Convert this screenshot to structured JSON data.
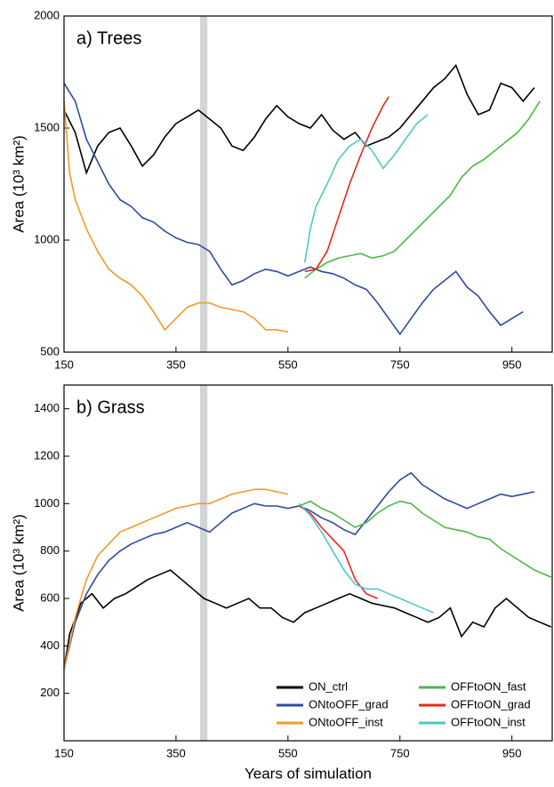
{
  "chart_data": [
    {
      "type": "line",
      "title": "a) Trees",
      "ylabel": "Area (10³ km²)",
      "xlim": [
        150,
        1022
      ],
      "xticks": [
        150,
        350,
        550,
        750,
        950
      ],
      "ylim": [
        500,
        2000
      ],
      "yticks": [
        500,
        1000,
        1500,
        2000
      ],
      "highlight_span": [
        393,
        406
      ],
      "series": [
        {
          "color": "#000000",
          "x": [
            150,
            170,
            190,
            210,
            230,
            250,
            270,
            290,
            310,
            330,
            350,
            370,
            390,
            410,
            430,
            450,
            470,
            490,
            510,
            530,
            550,
            570,
            590,
            610,
            630,
            650,
            670,
            690,
            710,
            730,
            750,
            770,
            790,
            810,
            830,
            850,
            870,
            890,
            910,
            930,
            950,
            970,
            990
          ],
          "values": [
            1580,
            1480,
            1300,
            1420,
            1480,
            1500,
            1420,
            1330,
            1380,
            1460,
            1520,
            1550,
            1580,
            1540,
            1500,
            1420,
            1400,
            1460,
            1540,
            1600,
            1550,
            1520,
            1500,
            1560,
            1490,
            1450,
            1480,
            1420,
            1440,
            1460,
            1500,
            1560,
            1620,
            1680,
            1720,
            1780,
            1650,
            1560,
            1580,
            1700,
            1680,
            1620,
            1680
          ]
        },
        {
          "color": "#2e4a9e",
          "x": [
            150,
            170,
            190,
            210,
            230,
            250,
            270,
            290,
            310,
            330,
            350,
            370,
            390,
            410,
            430,
            450,
            470,
            490,
            510,
            530,
            550,
            570,
            590,
            610,
            630,
            650,
            670,
            690,
            710,
            730,
            750,
            770,
            790,
            810,
            830,
            850,
            870,
            890,
            910,
            930,
            950,
            970
          ],
          "values": [
            1700,
            1620,
            1450,
            1350,
            1250,
            1180,
            1150,
            1100,
            1080,
            1040,
            1010,
            990,
            980,
            950,
            870,
            800,
            820,
            850,
            870,
            860,
            840,
            860,
            880,
            860,
            850,
            830,
            800,
            780,
            720,
            650,
            580,
            650,
            720,
            780,
            820,
            860,
            790,
            750,
            680,
            620,
            650,
            680
          ]
        },
        {
          "color": "#f39a2b",
          "x": [
            150,
            160,
            170,
            190,
            210,
            230,
            250,
            270,
            290,
            310,
            330,
            350,
            370,
            390,
            410,
            430,
            450,
            470,
            490,
            510,
            530,
            550
          ],
          "values": [
            1620,
            1300,
            1180,
            1050,
            950,
            870,
            830,
            800,
            750,
            680,
            600,
            650,
            700,
            720,
            720,
            700,
            690,
            680,
            650,
            600,
            600,
            590
          ]
        },
        {
          "color": "#4cb847",
          "x": [
            580,
            600,
            620,
            640,
            660,
            680,
            700,
            720,
            740,
            760,
            780,
            800,
            820,
            840,
            860,
            880,
            900,
            920,
            940,
            960,
            980,
            1000
          ],
          "values": [
            830,
            870,
            900,
            920,
            930,
            940,
            920,
            930,
            950,
            1000,
            1050,
            1100,
            1150,
            1200,
            1280,
            1330,
            1360,
            1400,
            1440,
            1480,
            1540,
            1620
          ]
        },
        {
          "color": "#e8291c",
          "x": [
            580,
            600,
            620,
            640,
            660,
            680,
            700,
            720,
            730
          ],
          "values": [
            860,
            870,
            950,
            1100,
            1250,
            1380,
            1500,
            1600,
            1640
          ]
        },
        {
          "color": "#4fc8c8",
          "x": [
            580,
            590,
            600,
            620,
            640,
            660,
            680,
            700,
            720,
            740,
            760,
            780,
            800
          ],
          "values": [
            900,
            1050,
            1150,
            1250,
            1360,
            1420,
            1450,
            1400,
            1320,
            1380,
            1450,
            1520,
            1560
          ]
        }
      ]
    },
    {
      "type": "line",
      "title": "b) Grass",
      "ylabel": "Area (10³ km²)",
      "xlabel": "Years of simulation",
      "xlim": [
        150,
        1022
      ],
      "xticks": [
        150,
        350,
        550,
        750,
        950
      ],
      "ylim": [
        0,
        1500
      ],
      "yticks": [
        200,
        400,
        600,
        800,
        1000,
        1200,
        1400
      ],
      "highlight_span": [
        393,
        406
      ],
      "legend": "lower right",
      "series": [
        {
          "name": "ON_ctrl",
          "color": "#000000",
          "x": [
            150,
            160,
            180,
            200,
            220,
            240,
            260,
            280,
            300,
            320,
            340,
            360,
            380,
            400,
            420,
            440,
            460,
            480,
            500,
            520,
            540,
            560,
            580,
            600,
            620,
            640,
            660,
            680,
            700,
            720,
            740,
            760,
            780,
            800,
            820,
            840,
            860,
            880,
            900,
            920,
            940,
            960,
            980,
            1000,
            1020
          ],
          "values": [
            300,
            450,
            580,
            620,
            560,
            600,
            620,
            650,
            680,
            700,
            720,
            680,
            640,
            600,
            580,
            560,
            580,
            600,
            560,
            560,
            520,
            500,
            540,
            560,
            580,
            600,
            620,
            600,
            580,
            570,
            560,
            540,
            520,
            500,
            520,
            560,
            440,
            500,
            480,
            560,
            600,
            560,
            520,
            500,
            480
          ]
        },
        {
          "name": "ONtoOFF_grad",
          "color": "#2e4a9e",
          "x": [
            150,
            170,
            190,
            210,
            230,
            250,
            270,
            290,
            310,
            330,
            350,
            370,
            390,
            410,
            430,
            450,
            470,
            490,
            510,
            530,
            550,
            570,
            590,
            610,
            630,
            650,
            670,
            690,
            710,
            730,
            750,
            770,
            790,
            810,
            830,
            850,
            870,
            890,
            910,
            930,
            950,
            970,
            990
          ],
          "values": [
            300,
            500,
            620,
            700,
            760,
            800,
            830,
            850,
            870,
            880,
            900,
            920,
            900,
            880,
            920,
            960,
            980,
            1000,
            990,
            990,
            980,
            990,
            970,
            940,
            920,
            890,
            870,
            930,
            990,
            1050,
            1100,
            1130,
            1080,
            1050,
            1020,
            1000,
            980,
            1000,
            1020,
            1040,
            1030,
            1040,
            1050
          ]
        },
        {
          "name": "ONtoOFF_inst",
          "color": "#f39a2b",
          "x": [
            150,
            170,
            190,
            210,
            230,
            250,
            270,
            290,
            310,
            330,
            350,
            370,
            390,
            410,
            430,
            450,
            470,
            490,
            510,
            530,
            550
          ],
          "values": [
            300,
            520,
            680,
            780,
            830,
            880,
            900,
            920,
            940,
            960,
            980,
            990,
            1000,
            1000,
            1020,
            1040,
            1050,
            1060,
            1060,
            1050,
            1040
          ]
        },
        {
          "name": "OFFtoON_fast",
          "color": "#4cb847",
          "x": [
            570,
            590,
            610,
            630,
            650,
            670,
            690,
            710,
            730,
            750,
            770,
            790,
            810,
            830,
            850,
            870,
            890,
            910,
            930,
            950,
            970,
            990,
            1020
          ],
          "values": [
            990,
            1010,
            980,
            960,
            930,
            900,
            920,
            960,
            990,
            1010,
            1000,
            960,
            930,
            900,
            890,
            880,
            860,
            850,
            810,
            780,
            750,
            720,
            690
          ]
        },
        {
          "name": "OFFtoON_grad",
          "color": "#e8291c",
          "x": [
            570,
            590,
            610,
            630,
            650,
            670,
            690,
            710
          ],
          "values": [
            990,
            960,
            900,
            850,
            800,
            680,
            620,
            600
          ]
        },
        {
          "name": "OFFtoON_inst",
          "color": "#4fc8c8",
          "x": [
            570,
            590,
            610,
            630,
            650,
            670,
            690,
            710,
            730,
            750,
            770,
            790,
            810
          ],
          "values": [
            1000,
            950,
            880,
            800,
            720,
            660,
            640,
            640,
            620,
            600,
            580,
            560,
            540
          ]
        }
      ]
    }
  ]
}
